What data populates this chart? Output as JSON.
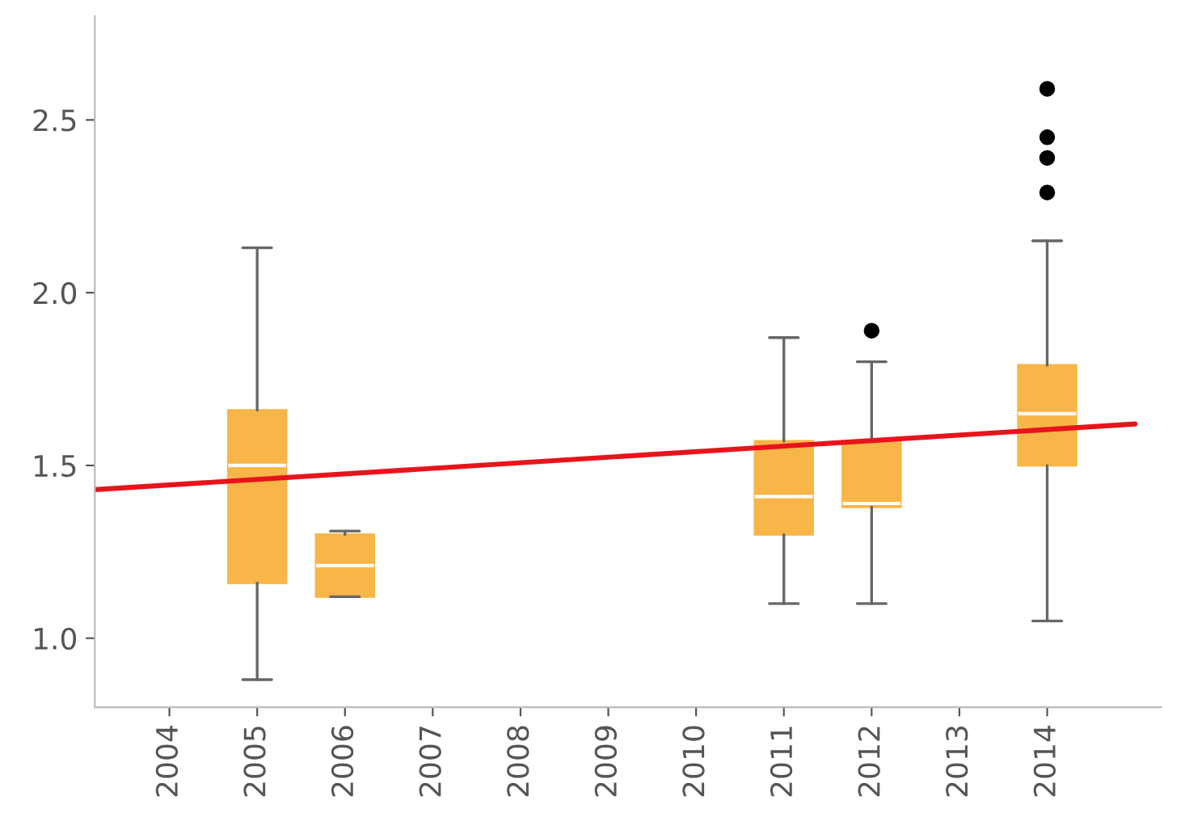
{
  "chart_data": {
    "type": "box",
    "series": [
      {
        "color": "#f8b548",
        "x": [
          2005,
          2006,
          2011,
          2012,
          2014
        ],
        "boxes": [
          {
            "low": 0.88,
            "q1": 1.16,
            "median": 1.5,
            "q3": 1.66,
            "high": 2.13
          },
          {
            "low": 1.12,
            "q1": 1.12,
            "median": 1.21,
            "q3": 1.3,
            "high": 1.31
          },
          {
            "low": 1.1,
            "q1": 1.3,
            "median": 1.41,
            "q3": 1.57,
            "high": 1.87
          },
          {
            "low": 1.1,
            "q1": 1.38,
            "median": 1.39,
            "q3": 1.57,
            "high": 1.8,
            "outliers": [
              1.89
            ]
          },
          {
            "low": 1.05,
            "q1": 1.5,
            "median": 1.65,
            "q3": 1.79,
            "high": 2.15,
            "outliers": [
              2.29,
              2.39,
              2.45,
              2.59
            ]
          }
        ]
      },
      {
        "type": "line",
        "color": "#e8141c",
        "x": [
          2003.15,
          2015.0
        ],
        "values": [
          1.43,
          1.62
        ]
      }
    ],
    "xlim": [
      2003.15,
      2015.3
    ],
    "xticks": [
      2004,
      2005,
      2006,
      2007,
      2008,
      2009,
      2010,
      2011,
      2012,
      2013,
      2014
    ],
    "ylim": [
      0.8,
      2.8
    ],
    "yticks": [
      {
        "value": 1.0,
        "label": "1.0"
      },
      {
        "value": 1.5,
        "label": "1.5"
      },
      {
        "value": 2.0,
        "label": "2.0"
      },
      {
        "value": 2.5,
        "label": "2.5"
      }
    ],
    "grid": false
  }
}
